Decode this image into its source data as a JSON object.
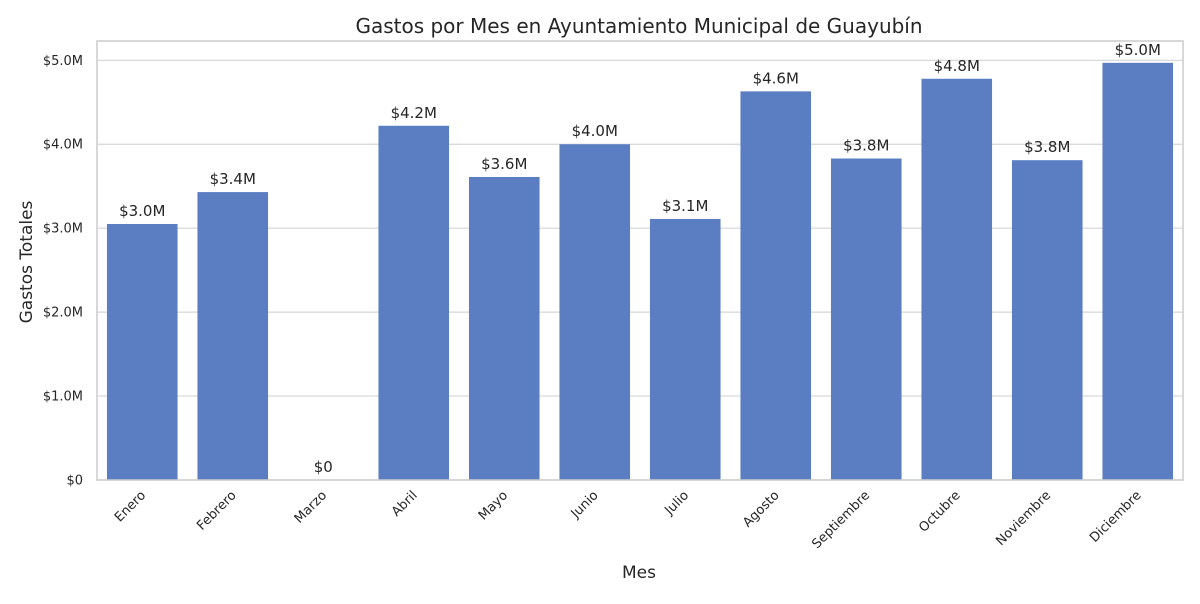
{
  "chart_data": {
    "type": "bar",
    "title": "Gastos por Mes en Ayuntamiento Municipal de Guayubín",
    "xlabel": "Mes",
    "ylabel": "Gastos Totales",
    "categories": [
      "Enero",
      "Febrero",
      "Marzo",
      "Abril",
      "Mayo",
      "Junio",
      "Julio",
      "Agosto",
      "Septiembre",
      "Octubre",
      "Noviembre",
      "Diciembre"
    ],
    "values": [
      3050000,
      3430000,
      0,
      4220000,
      3610000,
      4000000,
      3110000,
      4630000,
      3830000,
      4780000,
      3810000,
      4970000
    ],
    "data_labels": [
      "$3.0M",
      "$3.4M",
      "$0",
      "$4.2M",
      "$3.6M",
      "$4.0M",
      "$3.1M",
      "$4.6M",
      "$3.8M",
      "$4.8M",
      "$3.8M",
      "$5.0M"
    ],
    "yticks": [
      0,
      1000000,
      2000000,
      3000000,
      4000000,
      5000000
    ],
    "ytick_labels": [
      "$0",
      "$1.0M",
      "$2.0M",
      "$3.0M",
      "$4.0M",
      "$5.0M"
    ],
    "ylim": [
      0,
      5230000
    ],
    "grid": "horizontal",
    "legend": "none",
    "bar_color": "#5b7dc2",
    "grid_color": "#d5d5d5",
    "frame_color": "#cccccc"
  }
}
